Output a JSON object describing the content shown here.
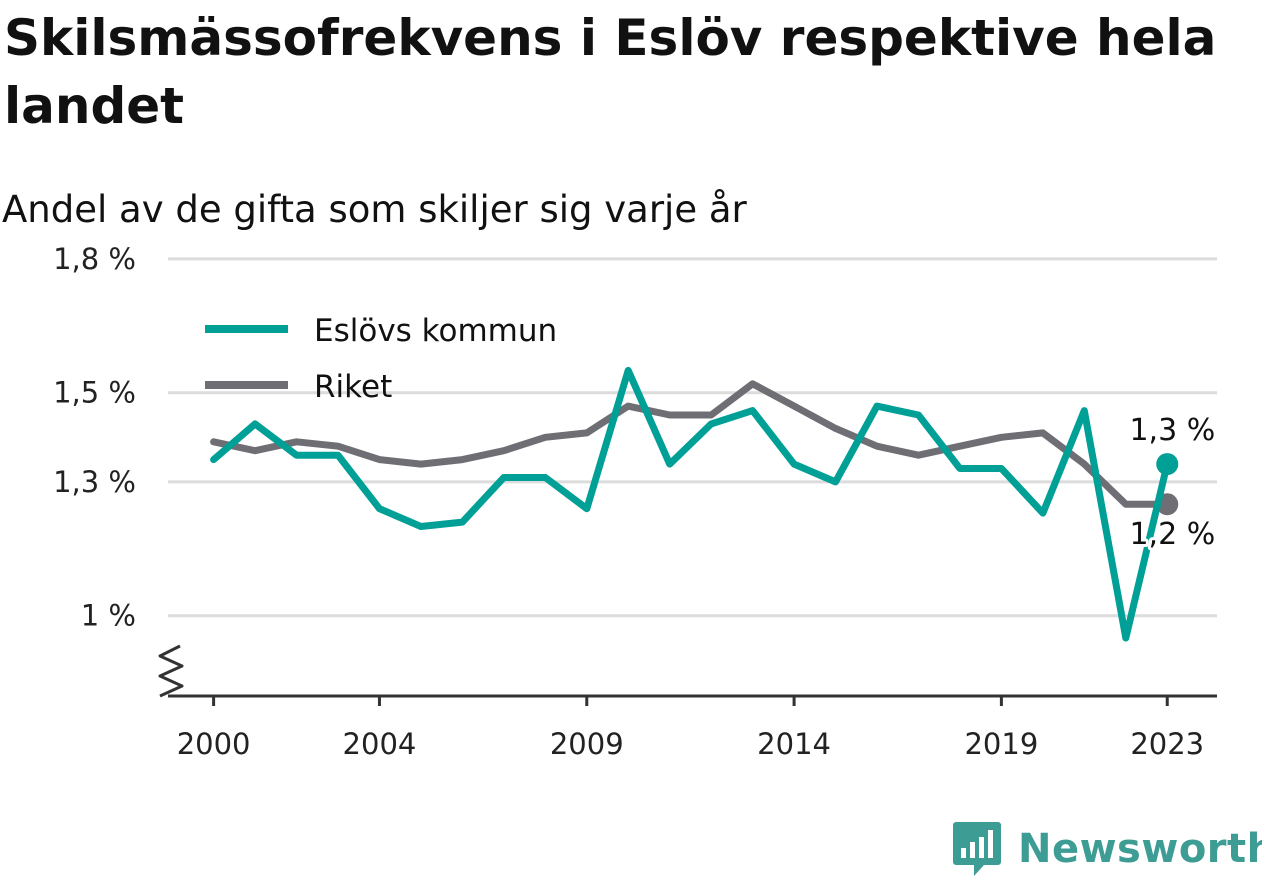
{
  "title": "Skilsmässofrekvens i Eslöv respektive hela landet",
  "subtitle": "Andel av de gifta som skiljer sig varje år",
  "brand": {
    "name": "Newsworthy",
    "icon": "newsworthy-logo-icon",
    "color": "#3d9c93"
  },
  "chart_data": {
    "type": "line",
    "xlabel": "",
    "ylabel": "",
    "y_axis_break": true,
    "ylim": [
      0.82,
      1.82
    ],
    "xlim": [
      1998.9,
      2024.2
    ],
    "x_ticks": [
      {
        "value": 2000,
        "label": "2000"
      },
      {
        "value": 2004,
        "label": "2004"
      },
      {
        "value": 2009,
        "label": "2009"
      },
      {
        "value": 2014,
        "label": "2014"
      },
      {
        "value": 2019,
        "label": "2019"
      },
      {
        "value": 2023,
        "label": "2023"
      }
    ],
    "y_ticks": [
      {
        "value": 1.0,
        "label": "1 %"
      },
      {
        "value": 1.3,
        "label": "1,3 %"
      },
      {
        "value": 1.5,
        "label": "1,5 %"
      },
      {
        "value": 1.8,
        "label": "1,8 %"
      }
    ],
    "grid": true,
    "legend": "top-left",
    "x": [
      2000,
      2001,
      2002,
      2003,
      2004,
      2005,
      2006,
      2007,
      2008,
      2009,
      2010,
      2011,
      2012,
      2013,
      2014,
      2015,
      2016,
      2017,
      2018,
      2019,
      2020,
      2021,
      2022,
      2023
    ],
    "series": [
      {
        "name": "Eslövs kommun",
        "color": "#00a096",
        "values": [
          1.35,
          1.43,
          1.36,
          1.36,
          1.24,
          1.2,
          1.21,
          1.31,
          1.31,
          1.24,
          1.55,
          1.34,
          1.43,
          1.46,
          1.34,
          1.3,
          1.47,
          1.45,
          1.33,
          1.33,
          1.23,
          1.46,
          0.95,
          1.34
        ],
        "end_label": "1,3 %"
      },
      {
        "name": "Riket",
        "color": "#6f6e74",
        "values": [
          1.39,
          1.37,
          1.39,
          1.38,
          1.35,
          1.34,
          1.35,
          1.37,
          1.4,
          1.41,
          1.47,
          1.45,
          1.45,
          1.52,
          1.47,
          1.42,
          1.38,
          1.36,
          1.38,
          1.4,
          1.41,
          1.34,
          1.25,
          1.25
        ],
        "end_label": "1,2 %"
      }
    ]
  }
}
